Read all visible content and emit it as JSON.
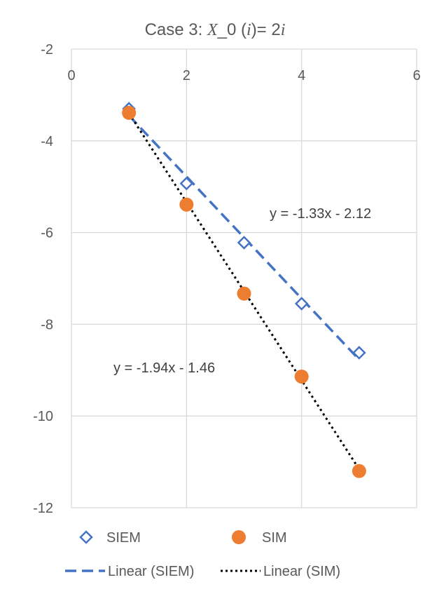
{
  "chart_data": {
    "type": "scatter",
    "title": {
      "prefix": "Case 3: ",
      "var": "X",
      "mid": "_0 (",
      "idx": "i",
      "suffix": ")= 2",
      "idx2": "i"
    },
    "xlim": [
      0,
      6
    ],
    "ylim": [
      -12,
      -2
    ],
    "x_ticks": [
      0,
      2,
      4,
      6
    ],
    "y_ticks": [
      -2,
      -4,
      -6,
      -8,
      -10,
      -12
    ],
    "x_tick_labels": [
      "0",
      "2",
      "4",
      "6"
    ],
    "y_tick_labels": [
      "-2",
      "-4",
      "-6",
      "-8",
      "-10",
      "-12"
    ],
    "grid": true,
    "legend_position": "bottom",
    "series": [
      {
        "name": "SIEM",
        "marker": "diamond-open",
        "color": "#4472C4",
        "x": [
          1,
          2,
          3,
          4,
          5
        ],
        "y": [
          -3.3,
          -4.93,
          -6.22,
          -7.55,
          -8.62
        ]
      },
      {
        "name": "SIM",
        "marker": "circle-filled",
        "color": "#ED7D31",
        "x": [
          1,
          2,
          3,
          4,
          5
        ],
        "y": [
          -3.39,
          -5.39,
          -7.33,
          -9.14,
          -11.2
        ]
      }
    ],
    "trendlines": [
      {
        "name": "Linear (SIEM)",
        "series": "SIEM",
        "slope": -1.33,
        "intercept": -2.12,
        "x_range": [
          1,
          5
        ],
        "style": "dashed",
        "color": "#4472C4",
        "equation": "y = -1.33x - 2.12"
      },
      {
        "name": "Linear (SIM)",
        "series": "SIM",
        "slope": -1.94,
        "intercept": -1.46,
        "x_range": [
          1,
          5
        ],
        "style": "dotted",
        "color": "#000000",
        "equation": "y = -1.94x - 1.46"
      }
    ]
  }
}
